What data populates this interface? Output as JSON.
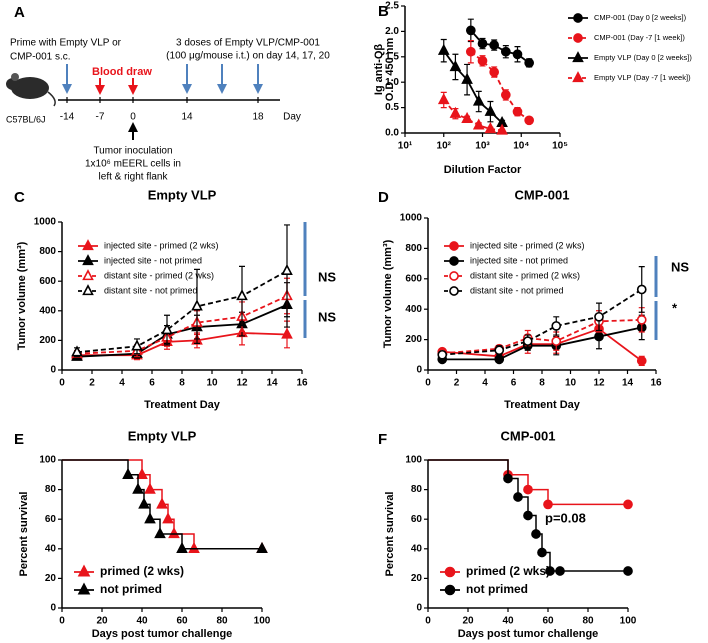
{
  "panel_a": {
    "letter": "A",
    "prime_text": [
      "Prime with Empty VLP or",
      "CMP-001 s.c."
    ],
    "blood_draw": "Blood draw",
    "doses_text": [
      "3 doses of Empty VLP/CMP-001",
      "(100 μg/mouse i.t.) on day 14, 17, 20"
    ],
    "strain": "C57BL/6J",
    "timeline_labels": [
      "-14",
      "-7",
      "0",
      "14",
      "18",
      "Day"
    ],
    "inoculation_text": [
      "Tumor inoculation",
      "1x10⁶ mEERL cells in",
      "left & right flank"
    ]
  },
  "chart_data": [
    {
      "type": "line",
      "panel": "B",
      "xscale": "log",
      "ylabel": [
        "Ig anti-Qβ",
        "O.D. 450 nm"
      ],
      "xlabel": "Dilution Factor",
      "xlim": [
        10,
        100000
      ],
      "xticks": [
        {
          "value": 10,
          "label": "10¹"
        },
        {
          "value": 100,
          "label": "10²"
        },
        {
          "value": 1000,
          "label": "10³"
        },
        {
          "value": 10000,
          "label": "10⁴"
        },
        {
          "value": 100000,
          "label": "10⁵"
        }
      ],
      "ylim": [
        0,
        2.5
      ],
      "yticks": [
        {
          "value": 0,
          "label": "0.0"
        },
        0.5,
        {
          "value": 1,
          "label": "1.0"
        },
        1.5,
        {
          "value": 2,
          "label": "2.0"
        },
        2.5
      ],
      "legend": "outside right",
      "series": [
        {
          "name": "CMP-001 (Day 0 [2 weeks])",
          "color": "#000000",
          "marker": "circle",
          "filled": true,
          "line_style": "solid",
          "x": [
            500,
            1000,
            2000,
            4000,
            8000,
            16000
          ],
          "values": [
            2.02,
            1.76,
            1.73,
            1.6,
            1.55,
            1.38
          ],
          "errors": [
            0.22,
            0.1,
            0.1,
            0.12,
            0.15,
            0.08
          ]
        },
        {
          "name": "CMP-001 (Day -7 [1 week])",
          "color": "#e8141b",
          "marker": "circle",
          "filled": true,
          "line_style": "dashed",
          "x": [
            500,
            1000,
            2000,
            4000,
            8000,
            16000
          ],
          "values": [
            1.6,
            1.42,
            1.2,
            0.75,
            0.42,
            0.25
          ],
          "errors": [
            0.22,
            0.1,
            0.1,
            0.1,
            0.08,
            0.04
          ]
        },
        {
          "name": "Empty VLP (Day 0 [2 weeks])",
          "color": "#000000",
          "marker": "triangle",
          "filled": true,
          "line_style": "solid",
          "x": [
            100,
            200,
            400,
            800,
            1600,
            3200
          ],
          "values": [
            1.62,
            1.3,
            1.05,
            0.62,
            0.42,
            0.2
          ],
          "errors": [
            0.22,
            0.25,
            0.3,
            0.2,
            0.2,
            0.05
          ]
        },
        {
          "name": "Empty VLP (Day -7 [1 week])",
          "color": "#e8141b",
          "marker": "triangle",
          "filled": true,
          "line_style": "dashed",
          "x": [
            100,
            200,
            400,
            800,
            1600,
            3200
          ],
          "values": [
            0.65,
            0.38,
            0.28,
            0.15,
            0.08,
            0.05
          ],
          "errors": [
            0.15,
            0.1,
            0.05,
            0.05,
            0.03,
            0.02
          ]
        }
      ]
    },
    {
      "type": "line",
      "panel": "C",
      "title": "Empty VLP",
      "ylabel": "Tumor volume (mm³)",
      "xlabel": "Treatment Day",
      "x": [
        1,
        5,
        7,
        9,
        12,
        15
      ],
      "xlim": [
        0,
        16
      ],
      "xticks": [
        0,
        2,
        4,
        6,
        8,
        10,
        12,
        14,
        16
      ],
      "ylim": [
        0,
        1000
      ],
      "yticks": [
        0,
        200,
        400,
        600,
        800,
        1000
      ],
      "legend": "upper left",
      "annotations": [
        "NS",
        "NS"
      ],
      "series": [
        {
          "name": "injected site - primed (2 wks)",
          "color": "#e8141b",
          "marker": "triangle",
          "filled": true,
          "line_style": "solid",
          "values": [
            100,
            100,
            190,
            200,
            250,
            240
          ],
          "errors": [
            30,
            30,
            50,
            50,
            80,
            90
          ]
        },
        {
          "name": "injected site - not primed",
          "color": "#000000",
          "marker": "triangle",
          "filled": true,
          "line_style": "solid",
          "values": [
            90,
            110,
            240,
            290,
            310,
            440
          ],
          "errors": [
            20,
            30,
            60,
            80,
            80,
            150
          ]
        },
        {
          "name": "distant site - primed (2 wks)",
          "color": "#e8141b",
          "marker": "triangle",
          "filled": false,
          "line_style": "dashed",
          "values": [
            110,
            130,
            220,
            320,
            360,
            500
          ],
          "errors": [
            20,
            40,
            60,
            80,
            100,
            120
          ]
        },
        {
          "name": "distant site - not primed",
          "color": "#000000",
          "marker": "triangle",
          "filled": false,
          "line_style": "dashed",
          "values": [
            120,
            160,
            270,
            430,
            500,
            670
          ],
          "errors": [
            30,
            50,
            100,
            250,
            200,
            310
          ]
        }
      ]
    },
    {
      "type": "line",
      "panel": "D",
      "title": "CMP-001",
      "ylabel": "Tumor volume (mm³)",
      "xlabel": "Treatment Day",
      "x": [
        1,
        5,
        7,
        9,
        12,
        15
      ],
      "xlim": [
        0,
        16
      ],
      "xticks": [
        0,
        2,
        4,
        6,
        8,
        10,
        12,
        14,
        16
      ],
      "ylim": [
        0,
        1000
      ],
      "yticks": [
        0,
        200,
        400,
        600,
        800,
        1000
      ],
      "legend": "upper left",
      "annotations": [
        "NS",
        "*"
      ],
      "series": [
        {
          "name": "injected site - primed (2 wks)",
          "color": "#e8141b",
          "marker": "circle",
          "filled": true,
          "line_style": "solid",
          "values": [
            120,
            90,
            170,
            170,
            270,
            60
          ],
          "errors": [
            20,
            20,
            60,
            60,
            50,
            30
          ]
        },
        {
          "name": "injected site - not primed",
          "color": "#000000",
          "marker": "circle",
          "filled": true,
          "line_style": "solid",
          "values": [
            70,
            70,
            160,
            160,
            220,
            280
          ],
          "errors": [
            10,
            20,
            30,
            60,
            80,
            80
          ]
        },
        {
          "name": "distant site - primed (2 wks)",
          "color": "#e8141b",
          "marker": "circle",
          "filled": false,
          "line_style": "dashed",
          "values": [
            110,
            140,
            210,
            190,
            320,
            330
          ],
          "errors": [
            20,
            20,
            50,
            60,
            70,
            80
          ]
        },
        {
          "name": "distant site - not primed",
          "color": "#000000",
          "marker": "circle",
          "filled": false,
          "line_style": "dashed",
          "values": [
            100,
            130,
            190,
            290,
            350,
            530
          ],
          "errors": [
            20,
            30,
            40,
            60,
            90,
            150
          ]
        }
      ]
    },
    {
      "type": "step",
      "panel": "E",
      "title": "Empty VLP",
      "ylabel": "Percent survival",
      "xlabel": "Days post tumor challenge",
      "xlim": [
        0,
        100
      ],
      "xticks": [
        0,
        20,
        40,
        60,
        80,
        100
      ],
      "ylim": [
        0,
        100
      ],
      "yticks": [
        0,
        20,
        40,
        60,
        80,
        100
      ],
      "legend": "lower left",
      "series": [
        {
          "name": "primed (2 wks)",
          "color": "#e8141b",
          "marker": "triangle",
          "filled": true,
          "x": [
            0,
            40,
            44,
            50,
            53,
            56,
            66,
            100
          ],
          "values": [
            100,
            90,
            80,
            70,
            60,
            50,
            40,
            40
          ]
        },
        {
          "name": "not primed",
          "color": "#000000",
          "marker": "triangle",
          "filled": true,
          "x": [
            0,
            33,
            38,
            41,
            44,
            49,
            60,
            100
          ],
          "values": [
            100,
            90,
            80,
            70,
            60,
            50,
            40,
            40
          ]
        }
      ]
    },
    {
      "type": "step",
      "panel": "F",
      "title": "CMP-001",
      "ylabel": "Percent survival",
      "xlabel": "Days post tumor challenge",
      "xlim": [
        0,
        100
      ],
      "xticks": [
        0,
        20,
        40,
        60,
        80,
        100
      ],
      "ylim": [
        0,
        100
      ],
      "yticks": [
        0,
        20,
        40,
        60,
        80,
        100
      ],
      "legend": "lower left",
      "annotations": [
        "p=0.08"
      ],
      "series": [
        {
          "name": "primed (2 wks)",
          "color": "#e8141b",
          "marker": "circle",
          "filled": true,
          "x": [
            0,
            40,
            50,
            60,
            100
          ],
          "values": [
            100,
            90,
            80,
            70,
            70
          ]
        },
        {
          "name": "not primed",
          "color": "#000000",
          "marker": "circle",
          "filled": true,
          "x": [
            0,
            40,
            45,
            50,
            54,
            57,
            61,
            66,
            100
          ],
          "values": [
            100,
            87.5,
            75,
            62.5,
            50,
            37.5,
            25,
            25,
            25
          ]
        }
      ]
    }
  ]
}
